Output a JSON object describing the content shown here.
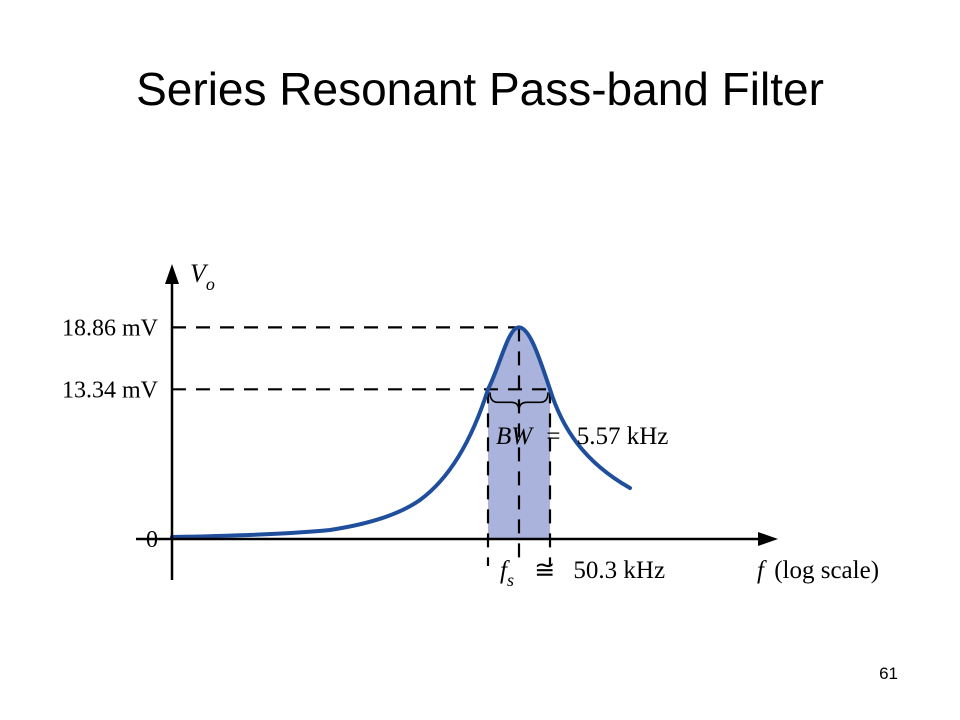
{
  "slide": {
    "title": "Series Resonant Pass-band Filter",
    "page_number": "61"
  },
  "colors": {
    "curve": "#1f4e9c",
    "band_fill": "#a9b3dc",
    "axis": "#000000"
  },
  "chart_data": {
    "type": "line",
    "title": "",
    "xlabel": "f (log scale)",
    "xlabel_italic_part": "f",
    "xlabel_rest": "(log scale)",
    "ylabel": "Vo",
    "ylabel_main": "V",
    "ylabel_sub": "o",
    "x_scale": "log",
    "y_unit": "mV",
    "ylim": [
      0,
      20.5
    ],
    "y_ticks": [
      {
        "value": 0,
        "label": "0"
      },
      {
        "value": 13.34,
        "label": "13.34 mV"
      },
      {
        "value": 18.86,
        "label": "18.86 mV"
      }
    ],
    "curve_peak": 18.86,
    "half_power_level": 13.34,
    "annotations": {
      "resonance": {
        "symbol": "f",
        "sub": "s",
        "relation": "≅",
        "value": "50.3 kHz"
      },
      "bandwidth": {
        "symbol": "BW",
        "relation": "=",
        "value": "5.57 kHz"
      }
    },
    "grid": false,
    "legend": "none"
  }
}
